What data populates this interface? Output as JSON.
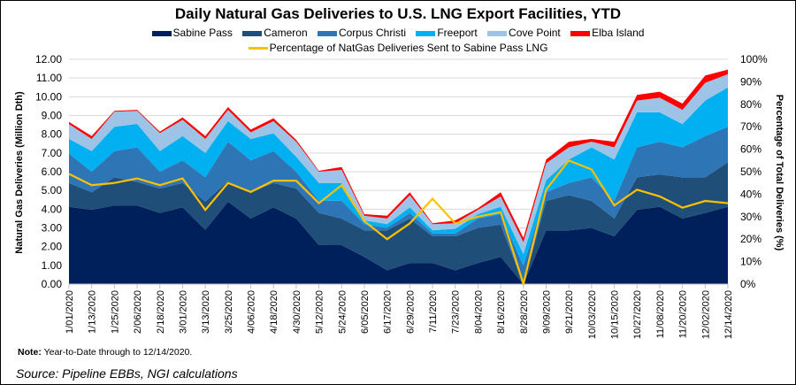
{
  "chart_data": {
    "type": "area",
    "stacked": true,
    "title": "Daily Natural Gas Deliveries to U.S. LNG Export Facilities, YTD",
    "ylabel": "Natural Gas Deliveries (Million Dth)",
    "y2label": "Percentage of Total Deliveries (%)",
    "ylim": [
      0,
      12
    ],
    "y2lim": [
      0,
      100
    ],
    "yticks": [
      "0.00",
      "1.00",
      "2.00",
      "3.00",
      "4.00",
      "5.00",
      "6.00",
      "7.00",
      "8.00",
      "9.00",
      "10.00",
      "11.00",
      "12.00"
    ],
    "y2ticks": [
      "0%",
      "10%",
      "20%",
      "30%",
      "40%",
      "50%",
      "60%",
      "70%",
      "80%",
      "90%",
      "100%"
    ],
    "grid": true,
    "legend": "top",
    "x": [
      "1/01/2020",
      "1/13/2020",
      "1/25/2020",
      "2/06/2020",
      "2/18/2020",
      "3/01/2020",
      "3/13/2020",
      "3/25/2020",
      "4/06/2020",
      "4/18/2020",
      "4/30/2020",
      "5/12/2020",
      "5/24/2020",
      "6/05/2020",
      "6/17/2020",
      "6/29/2020",
      "7/11/2020",
      "7/23/2020",
      "8/04/2020",
      "8/16/2020",
      "8/28/2020",
      "9/09/2020",
      "9/21/2020",
      "10/03/2020",
      "10/15/2020",
      "10/27/2020",
      "11/08/2020",
      "11/20/2020",
      "12/02/2020",
      "12/14/2020"
    ],
    "series": [
      {
        "name": "Sabine Pass",
        "color": "#00205B",
        "values": [
          4.13,
          3.97,
          4.2,
          4.2,
          3.8,
          4.1,
          2.9,
          4.4,
          3.5,
          4.1,
          3.5,
          2.08,
          2.08,
          1.45,
          0.74,
          1.13,
          1.13,
          0.74,
          1.13,
          1.45,
          0,
          2.87,
          2.87,
          3.0,
          2.55,
          3.97,
          4.13,
          3.5,
          3.8,
          4.13
        ]
      },
      {
        "name": "Cameron",
        "color": "#1F4E79",
        "values": [
          1.27,
          0.93,
          1.5,
          1.25,
          1.3,
          1.3,
          1.5,
          1.1,
          1.4,
          1.3,
          1.6,
          1.72,
          1.42,
          1.42,
          2.13,
          2.37,
          1.42,
          1.81,
          1.87,
          1.73,
          0,
          1.57,
          1.88,
          1.44,
          0.95,
          1.73,
          1.73,
          2.2,
          1.9,
          2.37
        ]
      },
      {
        "name": "Corpus Christi",
        "color": "#2E75B6",
        "values": [
          1.56,
          1.1,
          1.4,
          1.85,
          0.9,
          1.2,
          1.3,
          2.1,
          1.7,
          1.7,
          0.9,
          0.65,
          0.95,
          0.33,
          0.13,
          0.3,
          0.15,
          0.15,
          0.5,
          0.55,
          0.98,
          0.46,
          0.65,
          1.26,
          0.94,
          1.6,
          1.74,
          1.6,
          2.2,
          1.9
        ]
      },
      {
        "name": "Freeport",
        "color": "#00B0F0",
        "values": [
          0.79,
          1.1,
          1.3,
          1.25,
          1.1,
          1.3,
          1.3,
          1.1,
          1.15,
          0.95,
          0.8,
          0.95,
          0.95,
          0.2,
          0.2,
          0.3,
          0.17,
          0.25,
          0.23,
          0.4,
          0.62,
          0.64,
          1.25,
          1.6,
          2.21,
          1.87,
          1.57,
          1.24,
          1.9,
          2.1
        ]
      },
      {
        "name": "Cove Point",
        "color": "#9DC3E6",
        "values": [
          0.79,
          0.65,
          0.8,
          0.7,
          0.96,
          0.87,
          0.75,
          0.6,
          0.35,
          0.65,
          0.8,
          0.6,
          0.7,
          0.25,
          0.3,
          0.65,
          0.33,
          0.3,
          0.24,
          0.55,
          0.64,
          0.91,
          0.65,
          0.3,
          0.65,
          0.63,
          0.78,
          0.76,
          0.94,
          0.7
        ]
      },
      {
        "name": "Elba Island",
        "color": "#FF0000",
        "values": [
          0.12,
          0.15,
          0.05,
          0.05,
          0.08,
          0.13,
          0.15,
          0.15,
          0.15,
          0.15,
          0.1,
          0.05,
          0.15,
          0.08,
          0.15,
          0.15,
          0.05,
          0.15,
          0.08,
          0.22,
          0.23,
          0.2,
          0.3,
          0.15,
          0.3,
          0.3,
          0.32,
          0.34,
          0.39,
          0.25
        ]
      }
    ],
    "line_series": {
      "name": "Percentage of NatGas Deliveries Sent to Sabine Pass LNG",
      "color": "#FFC000",
      "axis": "right",
      "values": [
        49,
        44,
        45,
        47,
        44,
        47,
        33,
        45,
        41,
        46,
        46,
        36,
        44,
        28,
        20,
        27,
        38,
        27,
        30,
        32,
        0,
        42,
        55,
        51,
        35,
        42,
        39,
        34,
        37,
        36
      ]
    }
  },
  "note_label": "Note:",
  "note_text": " Year-to-Date through to 12/14/2020.",
  "source": "Source: Pipeline EBBs, NGI calculations"
}
